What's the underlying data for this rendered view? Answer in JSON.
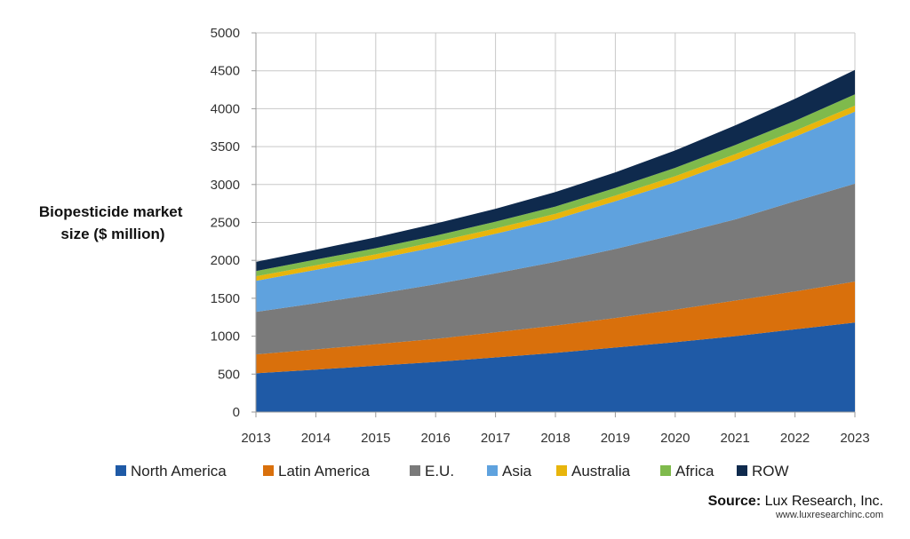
{
  "chart_data": {
    "type": "area",
    "stacked": true,
    "title": "",
    "ylabel": "Biopesticide market size ($ million)",
    "ylabel_lines": [
      "Biopesticide market",
      "size ($ million)"
    ],
    "xlabel": "",
    "x": [
      "2013",
      "2014",
      "2015",
      "2016",
      "2017",
      "2018",
      "2019",
      "2020",
      "2021",
      "2022",
      "2023"
    ],
    "ylim": [
      0,
      5000
    ],
    "yticks": [
      "0",
      "500",
      "1000",
      "1500",
      "2000",
      "2500",
      "3000",
      "3500",
      "4000",
      "4500",
      "5000"
    ],
    "grid": true,
    "legend_position": "bottom",
    "series": [
      {
        "name": "North America",
        "color": "#1f5aa6",
        "values": [
          510,
          560,
          610,
          660,
          720,
          780,
          850,
          920,
          1000,
          1090,
          1180
        ]
      },
      {
        "name": "Latin America",
        "color": "#d9700c",
        "values": [
          250,
          265,
          285,
          305,
          330,
          360,
          390,
          430,
          470,
          500,
          540
        ]
      },
      {
        "name": "E.U.",
        "color": "#7a7a7a",
        "values": [
          560,
          610,
          660,
          720,
          780,
          840,
          910,
          990,
          1070,
          1190,
          1290
        ]
      },
      {
        "name": "Asia",
        "color": "#5fa2de",
        "values": [
          410,
          440,
          460,
          490,
          520,
          560,
          630,
          690,
          780,
          850,
          950
        ]
      },
      {
        "name": "Australia",
        "color": "#e8b50c",
        "values": [
          60,
          60,
          65,
          70,
          70,
          75,
          75,
          80,
          80,
          80,
          80
        ]
      },
      {
        "name": "Africa",
        "color": "#7fba4c",
        "values": [
          70,
          75,
          80,
          80,
          90,
          95,
          100,
          110,
          120,
          130,
          150
        ]
      },
      {
        "name": "ROW",
        "color": "#0f2a4d",
        "values": [
          120,
          130,
          145,
          160,
          170,
          190,
          205,
          230,
          260,
          290,
          320
        ]
      }
    ]
  },
  "source": {
    "label": "Source:",
    "name": " Lux Research, Inc.",
    "url": "www.luxresearchinc.com"
  }
}
